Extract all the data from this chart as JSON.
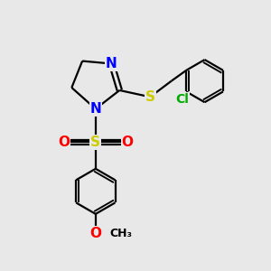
{
  "background_color": "#e8e8e8",
  "bond_color": "#000000",
  "bond_width": 1.6,
  "colors": {
    "N": "#0000ff",
    "S": "#cccc00",
    "O": "#ff0000",
    "Cl": "#00aa00",
    "C": "#000000"
  },
  "font_sizes": {
    "large": 11,
    "medium": 10,
    "small": 9
  }
}
